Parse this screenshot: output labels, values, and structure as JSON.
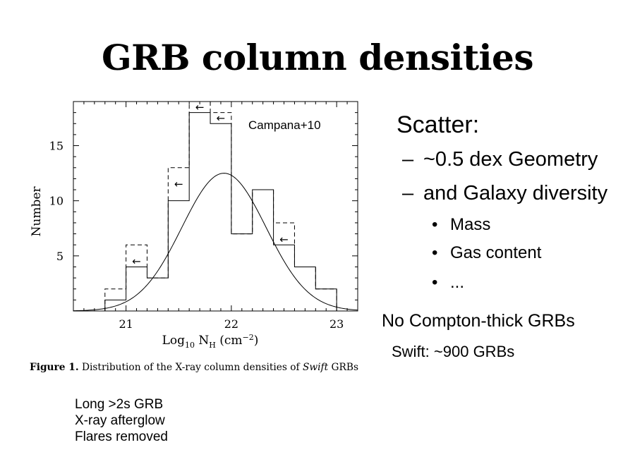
{
  "slide": {
    "title": "GRB column densities"
  },
  "bullets": {
    "heading": "Scatter:",
    "dash": "–",
    "bullet": "•",
    "sub": [
      "~0.5 dex Geometry",
      "and Galaxy diversity"
    ],
    "subsub": [
      "Mass",
      "Gas content",
      "..."
    ]
  },
  "notes": {
    "compton": "No Compton-thick GRBs",
    "swift": "Swift: ~900 GRBs",
    "selection": [
      "Long >2s GRB",
      "X-ray afterglow",
      "Flares removed"
    ]
  },
  "chart_data": {
    "type": "bar",
    "subtype": "histogram",
    "annotation": "Campana+10",
    "xlabel": "Log10 NH (cm−2)",
    "ylabel": "Number",
    "xlim": [
      20.5,
      23.2
    ],
    "ylim": [
      0,
      19
    ],
    "xticks": [
      21,
      22,
      23
    ],
    "yticks": [
      5,
      10,
      15
    ],
    "bin_edges": [
      20.8,
      21.0,
      21.2,
      21.4,
      21.6,
      21.8,
      22.0,
      22.2,
      22.4,
      22.6,
      22.8,
      23.0
    ],
    "series": [
      {
        "style": "solid",
        "values": [
          1,
          4,
          3,
          10,
          18,
          17,
          7,
          11,
          6,
          4,
          2
        ]
      },
      {
        "style": "dashed",
        "values": [
          2,
          6,
          3,
          13,
          19,
          18,
          7,
          11,
          8,
          4,
          2
        ]
      }
    ],
    "upper_limit_arrows": [
      {
        "x": 21.1,
        "y": 4.5
      },
      {
        "x": 21.5,
        "y": 11.5
      },
      {
        "x": 21.7,
        "y": 18.5
      },
      {
        "x": 21.9,
        "y": 17.5
      },
      {
        "x": 22.5,
        "y": 6.5
      }
    ],
    "fit": {
      "type": "gaussian",
      "mean": 21.93,
      "sigma": 0.4,
      "peak": 12.5
    },
    "caption": {
      "label": "Figure 1.",
      "text_pre": "Distribution of the X-ray column densities of",
      "text_em": "Swift",
      "text_post": "GRBs"
    }
  }
}
